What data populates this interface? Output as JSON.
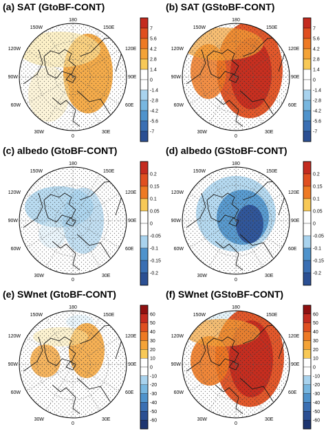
{
  "panels": [
    {
      "id": "a",
      "title": "(a) SAT (GtoBF-CONT)",
      "colorbar": [
        "7",
        "5.6",
        "4.2",
        "2.8",
        "1.4",
        "0",
        "-1.4",
        "-2.8",
        "-4.2",
        "-5.6",
        "-7"
      ],
      "lon_labels": {
        "top": "180",
        "tl": "150W",
        "tr": "150E",
        "ul": "120W",
        "ur": "120E",
        "l": "90W",
        "r": "90E",
        "ll": "60W",
        "lr": "60E",
        "bl": "30W",
        "br": "30E",
        "bottom": "0"
      }
    },
    {
      "id": "b",
      "title": "(b) SAT (GStoBF-CONT)",
      "colorbar": [
        "7",
        "5.6",
        "4.2",
        "2.8",
        "1.4",
        "0",
        "-1.4",
        "-2.8",
        "-4.2",
        "-5.6",
        "-7"
      ],
      "lon_labels": {
        "top": "180",
        "tl": "150W",
        "tr": "150E",
        "ul": "120W",
        "ur": "120E",
        "l": "90W",
        "r": "90E",
        "ll": "60W",
        "lr": "60E",
        "bl": "30W",
        "br": "30E",
        "bottom": "0"
      }
    },
    {
      "id": "c",
      "title": "(c) albedo (GtoBF-CONT)",
      "colorbar": [
        "0.2",
        "0.15",
        "0.1",
        "0.05",
        "0",
        "-0.05",
        "-0.1",
        "-0.15",
        "-0.2"
      ],
      "lon_labels": {
        "top": "180",
        "tl": "150W",
        "tr": "150E",
        "ul": "120W",
        "ur": "120E",
        "l": "90W",
        "r": "90E",
        "ll": "60W",
        "lr": "60E",
        "bl": "30W",
        "br": "30E",
        "bottom": "0"
      }
    },
    {
      "id": "d",
      "title": "(d) albedo (GStoBF-CONT)",
      "colorbar": [
        "0.2",
        "0.15",
        "0.1",
        "0.05",
        "0",
        "-0.05",
        "-0.1",
        "-0.15",
        "-0.2"
      ],
      "lon_labels": {
        "top": "180",
        "tl": "150W",
        "tr": "150E",
        "ul": "120W",
        "ur": "120E",
        "l": "90W",
        "r": "90E",
        "ll": "60W",
        "lr": "60E",
        "bl": "30W",
        "br": "30E",
        "bottom": "0"
      }
    },
    {
      "id": "e",
      "title": "(e) SWnet (GtoBF-CONT)",
      "colorbar": [
        "60",
        "50",
        "40",
        "30",
        "20",
        "10",
        "0",
        "-10",
        "-20",
        "-30",
        "-40",
        "-50",
        "-60"
      ],
      "lon_labels": {
        "top": "180",
        "tl": "150W",
        "tr": "150E",
        "ul": "120W",
        "ur": "120E",
        "l": "90W",
        "r": "90E",
        "ll": "60W",
        "lr": "60E",
        "bl": "30W",
        "br": "30E",
        "bottom": "0"
      }
    },
    {
      "id": "f",
      "title": "(f) SWnet (GStoBF-CONT)",
      "colorbar": [
        "60",
        "50",
        "40",
        "30",
        "20",
        "10",
        "0",
        "-10",
        "-20",
        "-30",
        "-40",
        "-50",
        "-60"
      ],
      "lon_labels": {
        "top": "180",
        "tl": "150W",
        "tr": "150E",
        "ul": "120W",
        "ur": "120E",
        "l": "90W",
        "r": "90E",
        "ll": "60W",
        "lr": "60E",
        "bl": "30W",
        "br": "30E",
        "bottom": "0"
      }
    }
  ],
  "colors": {
    "diverging_warm": [
      "#ffffff",
      "#fbe7a3",
      "#f8c957",
      "#f4a337",
      "#ee7a24",
      "#e04f20",
      "#c42b1f",
      "#8f1010"
    ],
    "diverging_cold": [
      "#ffffff",
      "#d6ecf7",
      "#a9d3ee",
      "#78b7e0",
      "#4f93cc",
      "#3a6fb3",
      "#2b4f93",
      "#1e3570"
    ],
    "coast": "#1a1a1a"
  }
}
